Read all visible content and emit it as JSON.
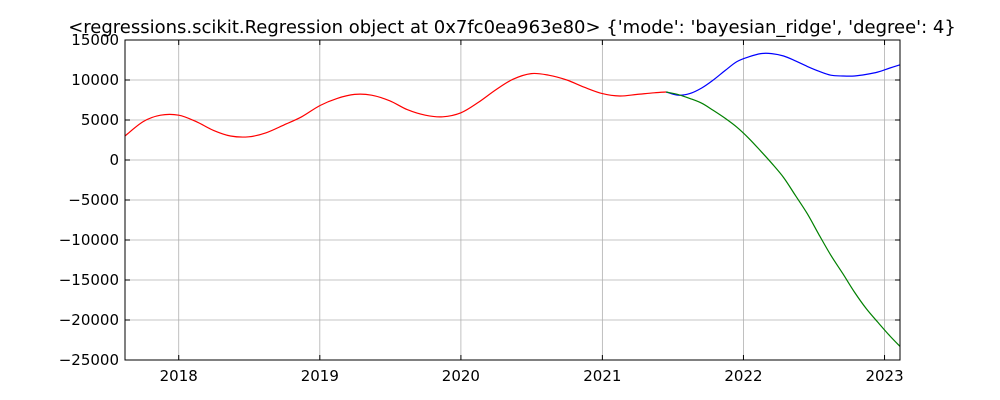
{
  "chart_data": {
    "type": "line",
    "title": "<regressions.scikit.Regression object at 0x7fc0ea963e80> {'mode': 'bayesian_ridge', 'degree': 4}",
    "xlabel": "",
    "ylabel": "",
    "x_axis_type": "date",
    "xlim": [
      "2017-08-15",
      "2023-02-10"
    ],
    "ylim": [
      -25000,
      15000
    ],
    "grid": true,
    "x_ticks": [
      "2018",
      "2019",
      "2020",
      "2021",
      "2022",
      "2023"
    ],
    "y_ticks": [
      "15000",
      "10000",
      "5000",
      "0",
      "−5000",
      "−10000",
      "−15000",
      "−20000",
      "−25000"
    ],
    "y_tick_values": [
      15000,
      10000,
      5000,
      0,
      -5000,
      -10000,
      -15000,
      -20000,
      -25000
    ],
    "series": [
      {
        "color": "#ff0000",
        "x": [
          "2017-08-15",
          "2017-10-01",
          "2017-11-15",
          "2018-01-01",
          "2018-02-15",
          "2018-04-01",
          "2018-05-15",
          "2018-07-01",
          "2018-08-15",
          "2018-10-01",
          "2018-11-15",
          "2019-01-01",
          "2019-02-15",
          "2019-04-01",
          "2019-05-15",
          "2019-07-01",
          "2019-08-15",
          "2019-10-01",
          "2019-11-15",
          "2020-01-01",
          "2020-02-15",
          "2020-04-01",
          "2020-05-15",
          "2020-07-01",
          "2020-08-15",
          "2020-10-01",
          "2020-11-15",
          "2021-01-01",
          "2021-02-15",
          "2021-04-01",
          "2021-05-15",
          "2021-06-15"
        ],
        "y": [
          3000,
          4800,
          5600,
          5600,
          4800,
          3700,
          3000,
          2900,
          3400,
          4400,
          5400,
          6800,
          7700,
          8200,
          8100,
          7400,
          6300,
          5600,
          5400,
          5900,
          7200,
          8800,
          10100,
          10800,
          10600,
          10000,
          9100,
          8300,
          8000,
          8200,
          8400,
          8500
        ]
      },
      {
        "color": "#0000ff",
        "x": [
          "2021-06-15",
          "2021-07-15",
          "2021-08-15",
          "2021-09-15",
          "2021-10-15",
          "2021-11-15",
          "2021-12-15",
          "2022-01-15",
          "2022-02-15",
          "2022-03-15",
          "2022-04-15",
          "2022-05-15",
          "2022-06-15",
          "2022-07-15",
          "2022-08-15",
          "2022-09-15",
          "2022-10-15",
          "2022-11-15",
          "2022-12-15",
          "2023-01-15",
          "2023-02-10"
        ],
        "y": [
          8500,
          8100,
          8300,
          9000,
          10000,
          11200,
          12300,
          12900,
          13300,
          13300,
          13000,
          12400,
          11700,
          11100,
          10600,
          10500,
          10500,
          10700,
          11000,
          11500,
          11900
        ]
      },
      {
        "color": "#008000",
        "x": [
          "2021-06-15",
          "2021-07-15",
          "2021-08-15",
          "2021-09-15",
          "2021-10-15",
          "2021-11-15",
          "2021-12-15",
          "2022-01-15",
          "2022-02-15",
          "2022-03-15",
          "2022-04-15",
          "2022-05-15",
          "2022-06-15",
          "2022-07-15",
          "2022-08-15",
          "2022-09-15",
          "2022-10-15",
          "2022-11-15",
          "2022-12-15",
          "2023-01-15",
          "2023-02-10"
        ],
        "y": [
          8500,
          8200,
          7700,
          7100,
          6200,
          5200,
          4100,
          2700,
          1100,
          -400,
          -2200,
          -4400,
          -6700,
          -9300,
          -11900,
          -14200,
          -16500,
          -18600,
          -20300,
          -22000,
          -23300
        ]
      }
    ]
  }
}
